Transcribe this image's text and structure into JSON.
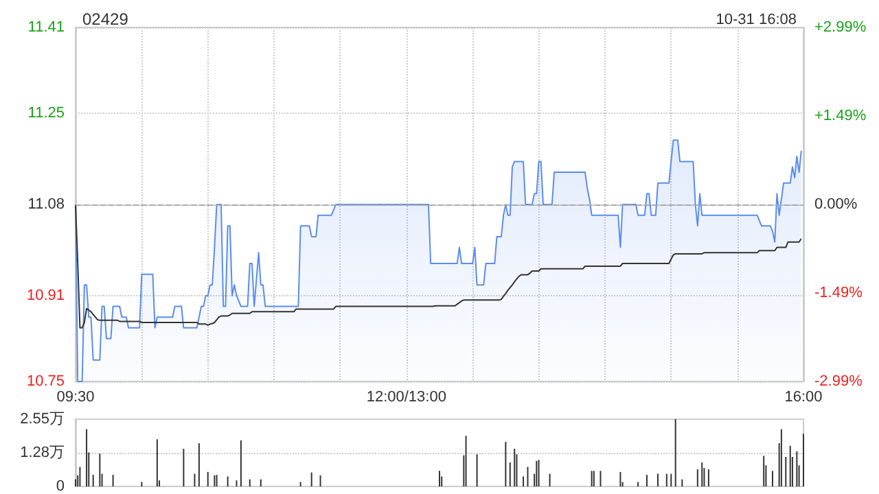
{
  "chart_data": [
    {
      "type": "line",
      "title": "02429",
      "subtitle": "10-31 16:08",
      "categories": [
        "09:30",
        null,
        null,
        null,
        null,
        null,
        null,
        null,
        null,
        null,
        null,
        null,
        null,
        null,
        null,
        null,
        null,
        null,
        null,
        null,
        null,
        null,
        null,
        null,
        null,
        null,
        null,
        null,
        null,
        null,
        null,
        null,
        null,
        null,
        null,
        null,
        null,
        null,
        null,
        null,
        null,
        null,
        null,
        null,
        null,
        null,
        null,
        null,
        null,
        null,
        null,
        null,
        null,
        null,
        null,
        null,
        null,
        null,
        null,
        null,
        null,
        null,
        null,
        null,
        null,
        null,
        null,
        null,
        null,
        null,
        null,
        null,
        null,
        null,
        null,
        null,
        null,
        null,
        null,
        null,
        null,
        null,
        null,
        null,
        null,
        null,
        null,
        null,
        null,
        null,
        null,
        null,
        null,
        null,
        null,
        null,
        null,
        null,
        null,
        null,
        null,
        null,
        null,
        null,
        null,
        null,
        null,
        null,
        null,
        null,
        null,
        null,
        null,
        null,
        null,
        null,
        null,
        null,
        null,
        null,
        null,
        null,
        null,
        null,
        null,
        null,
        null,
        null,
        null,
        null,
        null,
        null,
        null,
        null,
        null,
        null,
        null,
        null,
        null,
        null,
        null,
        null,
        null,
        null,
        null,
        null,
        null,
        null,
        null,
        null,
        "12:00/13:00",
        null,
        null,
        null,
        null,
        null,
        null,
        null,
        null,
        null,
        null,
        null,
        null,
        null,
        null,
        null,
        null,
        null,
        null,
        null,
        null,
        null,
        null,
        null,
        null,
        null,
        null,
        null,
        null,
        null,
        null,
        null,
        null,
        null,
        null,
        null,
        null,
        null,
        null,
        null,
        null,
        null,
        null,
        null,
        null,
        null,
        null,
        null,
        null,
        null,
        null,
        null,
        null,
        null,
        null,
        null,
        null,
        null,
        null,
        null,
        null,
        null,
        null,
        null,
        null,
        null,
        null,
        null,
        null,
        null,
        null,
        null,
        null,
        null,
        null,
        null,
        null,
        null,
        null,
        null,
        null,
        null,
        null,
        null,
        null,
        null,
        null,
        null,
        null,
        null,
        null,
        null,
        null,
        null,
        null,
        null,
        null,
        null,
        null,
        null,
        null,
        null,
        null,
        null,
        null,
        null,
        null,
        null,
        null,
        null,
        null,
        null,
        null,
        null,
        null,
        null,
        null,
        null,
        null,
        null,
        null,
        null,
        null,
        null,
        null,
        null,
        null,
        null,
        null,
        null,
        null,
        null,
        null,
        null,
        null,
        null,
        null,
        null,
        null,
        null,
        null,
        null,
        null,
        null,
        null,
        null,
        null,
        null,
        null,
        null,
        null,
        null,
        null,
        null,
        null,
        null,
        null,
        null,
        null,
        null,
        null,
        null,
        null,
        null,
        null,
        null,
        null,
        null,
        null,
        null,
        null,
        null,
        null,
        null,
        null,
        null,
        null,
        null,
        null,
        null,
        "16:00"
      ],
      "series": [
        {
          "type": "area",
          "color": "#5b8def",
          "values": [
            11.08,
            10.75,
            10.75,
            10.75,
            10.93,
            10.93,
            10.87,
            10.87,
            10.79,
            10.79,
            10.79,
            10.79,
            10.89,
            10.89,
            10.83,
            10.83,
            10.83,
            10.89,
            10.89,
            10.89,
            10.89,
            10.87,
            10.87,
            10.87,
            10.85,
            10.85,
            10.85,
            10.85,
            10.85,
            10.85,
            10.95,
            10.95,
            10.95,
            10.95,
            10.95,
            10.95,
            10.85,
            10.87,
            10.87,
            10.87,
            10.87,
            10.87,
            10.87,
            10.87,
            10.87,
            10.89,
            10.89,
            10.89,
            10.89,
            10.85,
            10.85,
            10.85,
            10.85,
            10.85,
            10.85,
            10.85,
            10.87,
            10.89,
            10.89,
            10.91,
            10.91,
            10.93,
            10.93,
            11.0,
            11.08,
            11.08,
            11.08,
            10.89,
            10.89,
            11.04,
            11.04,
            10.91,
            10.93,
            10.91,
            10.9,
            10.89,
            10.89,
            10.89,
            10.89,
            10.97,
            10.97,
            10.89,
            10.94,
            10.99,
            10.93,
            10.93,
            10.89,
            10.89,
            10.89,
            10.89,
            10.89,
            10.89,
            10.89,
            10.89,
            10.89,
            10.89,
            10.89,
            10.89,
            10.89,
            10.89,
            10.89,
            10.89,
            11.04,
            11.04,
            11.04,
            11.04,
            11.04,
            11.02,
            11.02,
            11.02,
            11.06,
            11.06,
            11.06,
            11.06,
            11.06,
            11.06,
            11.06,
            11.07,
            11.08,
            11.08,
            11.08,
            11.08,
            11.08,
            11.08,
            11.08,
            11.08,
            11.08,
            11.08,
            11.08,
            11.08,
            11.08,
            11.08,
            11.08,
            11.08,
            11.08,
            11.08,
            11.08,
            11.08,
            11.08,
            11.08,
            11.08,
            11.08,
            11.08,
            11.08,
            11.08,
            11.08,
            11.08,
            11.08,
            11.08,
            11.08,
            11.08,
            11.08,
            11.08,
            11.08,
            11.08,
            11.08,
            11.08,
            11.08,
            11.08,
            11.08,
            11.08,
            10.97,
            10.97,
            10.97,
            10.97,
            10.97,
            10.97,
            10.97,
            10.97,
            10.97,
            10.97,
            10.97,
            10.97,
            10.97,
            11.0,
            10.97,
            10.97,
            10.97,
            10.97,
            10.97,
            10.97,
            11.0,
            10.93,
            10.93,
            10.93,
            10.93,
            10.97,
            10.97,
            10.97,
            10.97,
            10.97,
            11.02,
            11.02,
            11.02,
            11.06,
            11.08,
            11.06,
            11.06,
            11.15,
            11.16,
            11.16,
            11.16,
            11.16,
            11.16,
            11.08,
            11.08,
            11.08,
            11.08,
            11.1,
            11.1,
            11.16,
            11.16,
            11.08,
            11.08,
            11.08,
            11.08,
            11.08,
            11.14,
            11.14,
            11.14,
            11.14,
            11.14,
            11.14,
            11.14,
            11.14,
            11.14,
            11.14,
            11.14,
            11.14,
            11.14,
            11.14,
            11.14,
            11.11,
            11.09,
            11.06,
            11.06,
            11.06,
            11.06,
            11.06,
            11.06,
            11.06,
            11.06,
            11.06,
            11.06,
            11.06,
            11.06,
            11.06,
            11.0,
            11.08,
            11.08,
            11.08,
            11.08,
            11.08,
            11.08,
            11.08,
            11.06,
            11.06,
            11.06,
            11.06,
            11.1,
            11.1,
            11.06,
            11.06,
            11.06,
            11.12,
            11.12,
            11.12,
            11.12,
            11.12,
            11.12,
            11.16,
            11.2,
            11.2,
            11.2,
            11.16,
            11.16,
            11.16,
            11.16,
            11.16,
            11.16,
            11.16,
            11.08,
            11.04,
            11.1,
            11.06,
            11.06,
            11.06,
            11.06,
            11.06,
            11.06,
            11.06,
            11.06,
            11.06,
            11.06,
            11.06,
            11.06,
            11.06,
            11.06,
            11.06,
            11.06,
            11.06,
            11.06,
            11.06,
            11.06,
            11.06,
            11.06,
            11.06,
            11.06,
            11.06,
            11.06,
            11.05,
            11.04,
            11.04,
            11.04,
            11.04,
            11.04,
            11.03,
            11.01,
            11.1,
            11.06,
            11.09,
            11.12,
            11.12,
            11.12,
            11.12,
            11.15,
            11.13,
            11.17,
            11.14,
            11.18,
            null
          ]
        },
        {
          "color": "#333333",
          "values": [
            11.08,
            10.97,
            10.85,
            10.85,
            10.86,
            10.886,
            10.883,
            10.88,
            10.875,
            10.87,
            10.865,
            10.864,
            10.864,
            10.864,
            10.864,
            10.864,
            10.864,
            10.864,
            10.864,
            10.864,
            10.862,
            10.862,
            10.862,
            10.862,
            10.862,
            10.862,
            10.862,
            10.862,
            10.862,
            10.862,
            10.86,
            10.86,
            10.86,
            10.86,
            10.86,
            10.86,
            10.86,
            10.86,
            10.86,
            10.86,
            10.86,
            10.86,
            10.86,
            10.86,
            10.86,
            10.86,
            10.86,
            10.86,
            10.86,
            10.86,
            10.86,
            10.86,
            10.86,
            10.86,
            10.86,
            10.86,
            10.857,
            10.857,
            10.857,
            10.857,
            10.855,
            10.857,
            10.858,
            10.86,
            10.865,
            10.87,
            10.872,
            10.872,
            10.872,
            10.872,
            10.874,
            10.877,
            10.877,
            10.877,
            10.877,
            10.877,
            10.877,
            10.877,
            10.877,
            10.877,
            10.88,
            10.88,
            10.88,
            10.88,
            10.88,
            10.88,
            10.88,
            10.88,
            10.88,
            10.88,
            10.88,
            10.88,
            10.88,
            10.88,
            10.88,
            10.88,
            10.88,
            10.88,
            10.88,
            10.88,
            10.885,
            10.885,
            10.885,
            10.885,
            10.885,
            10.885,
            10.885,
            10.885,
            10.885,
            10.885,
            10.885,
            10.885,
            10.885,
            10.885,
            10.885,
            10.885,
            10.885,
            10.885,
            10.89,
            10.89,
            10.89,
            10.89,
            10.89,
            10.89,
            10.89,
            10.89,
            10.89,
            10.89,
            10.89,
            10.89,
            10.89,
            10.89,
            10.89,
            10.89,
            10.89,
            10.89,
            10.89,
            10.89,
            10.89,
            10.89,
            10.89,
            10.89,
            10.89,
            10.89,
            10.89,
            10.89,
            10.89,
            10.89,
            10.89,
            10.89,
            10.89,
            10.89,
            10.89,
            10.89,
            10.89,
            10.89,
            10.89,
            10.89,
            10.89,
            10.89,
            10.89,
            10.89,
            10.89,
            10.891,
            10.891,
            10.891,
            10.891,
            10.891,
            10.891,
            10.891,
            10.891,
            10.891,
            10.891,
            10.894,
            10.897,
            10.9,
            10.902,
            10.902,
            10.902,
            10.902,
            10.902,
            10.902,
            10.902,
            10.902,
            10.902,
            10.902,
            10.902,
            10.902,
            10.902,
            10.902,
            10.902,
            10.902,
            10.902,
            10.903,
            10.909,
            10.914,
            10.92,
            10.925,
            10.93,
            10.936,
            10.941,
            10.946,
            10.949,
            10.949,
            10.949,
            10.949,
            10.952,
            10.956,
            10.956,
            10.956,
            10.956,
            10.96,
            10.96,
            10.96,
            10.96,
            10.96,
            10.96,
            10.96,
            10.96,
            10.96,
            10.96,
            10.96,
            10.96,
            10.96,
            10.96,
            10.96,
            10.96,
            10.96,
            10.96,
            10.96,
            10.96,
            10.965,
            10.965,
            10.965,
            10.965,
            10.965,
            10.965,
            10.965,
            10.965,
            10.965,
            10.965,
            10.965,
            10.965,
            10.965,
            10.965,
            10.965,
            10.965,
            10.965,
            10.97,
            10.97,
            10.97,
            10.97,
            10.97,
            10.97,
            10.97,
            10.97,
            10.97,
            10.97,
            10.97,
            10.97,
            10.97,
            10.97,
            10.97,
            10.97,
            10.97,
            10.97,
            10.97,
            10.97,
            10.97,
            10.97,
            10.978,
            10.986,
            10.988,
            10.988,
            10.988,
            10.988,
            10.988,
            10.988,
            10.988,
            10.988,
            10.988,
            10.988,
            10.988,
            10.988,
            10.988,
            10.99,
            10.99,
            10.99,
            10.99,
            10.99,
            10.99,
            10.99,
            10.99,
            10.99,
            10.99,
            10.99,
            10.99,
            10.99,
            10.99,
            10.99,
            10.99,
            10.99,
            10.99,
            10.99,
            10.99,
            10.99,
            10.99,
            10.99,
            10.99,
            10.99,
            10.994,
            10.994,
            10.994,
            10.994,
            10.994,
            10.994,
            10.994,
            10.994,
            11.0,
            11.0,
            11.0,
            11.0,
            11.0,
            11.01,
            11.01,
            11.01,
            11.01,
            11.01,
            11.01,
            11.016,
            null
          ]
        }
      ],
      "ylim": [
        10.75,
        11.41
      ],
      "yticks": [
        10.75,
        10.91,
        11.08,
        11.25,
        11.41
      ],
      "y2lim": [
        -2.99,
        2.99
      ],
      "y2ticks": [
        {
          "value": -2.99,
          "label": "-2.99%"
        },
        {
          "value": -1.49,
          "label": "-1.49%"
        },
        {
          "value": 0,
          "label": "0.00%"
        },
        {
          "value": 1.49,
          "label": "+1.49%"
        },
        {
          "value": 2.99,
          "label": "+2.99%"
        }
      ],
      "ref_lines": [
        {
          "axis": "y",
          "value": 11.08,
          "color": "#aaaaaa",
          "line_style": "dashed"
        }
      ],
      "grid": true,
      "marker": "none",
      "line_style": "solid"
    },
    {
      "type": "bar",
      "color": "#333333",
      "categories": [
        null,
        null,
        null,
        null,
        null,
        null,
        null,
        null,
        null,
        null,
        null,
        null,
        null,
        null,
        null,
        null,
        null,
        null,
        null,
        null,
        null,
        null,
        null,
        null,
        null,
        null,
        null,
        null,
        null,
        null,
        null,
        null,
        null,
        null,
        null,
        null,
        null,
        null,
        null,
        null,
        null,
        null,
        null,
        null,
        null,
        null,
        null,
        null,
        null,
        null,
        null,
        null,
        null,
        null,
        null,
        null,
        null,
        null,
        null,
        null,
        null,
        null,
        null,
        null,
        null,
        null,
        null,
        null,
        null,
        null,
        null,
        null,
        null,
        null,
        null,
        null,
        null,
        null,
        null,
        null,
        null,
        null,
        null,
        null,
        null,
        null,
        null,
        null,
        null,
        null,
        null,
        null,
        null,
        null,
        null,
        null,
        null,
        null,
        null,
        null,
        null,
        null,
        null,
        null,
        null,
        null,
        null,
        null,
        null,
        null,
        null,
        null,
        null,
        null,
        null,
        null,
        null,
        null,
        null,
        null,
        null,
        null,
        null,
        null,
        null,
        null,
        null,
        null,
        null,
        null,
        null,
        null,
        null,
        null,
        null,
        null,
        null,
        null,
        null,
        null,
        null,
        null,
        null,
        null,
        null,
        null,
        null,
        null,
        null,
        null,
        null,
        null,
        null,
        null,
        null,
        null,
        null,
        null,
        null,
        null,
        null,
        null,
        null,
        null,
        null,
        null,
        null,
        null,
        null,
        null,
        null,
        null,
        null,
        null,
        null,
        null,
        null,
        null,
        null,
        null,
        null,
        null,
        null,
        null,
        null,
        null,
        null,
        null,
        null,
        null,
        null,
        null,
        null,
        null,
        null,
        null,
        null,
        null,
        null,
        null,
        null,
        null,
        null,
        null,
        null,
        null,
        null,
        null,
        null,
        null,
        null,
        null,
        null,
        null,
        null,
        null,
        null,
        null,
        null,
        null,
        null,
        null,
        null,
        null,
        null,
        null,
        null,
        null,
        null,
        null,
        null,
        null,
        null,
        null,
        null,
        null,
        null,
        null,
        null,
        null,
        null,
        null,
        null,
        null,
        null,
        null,
        null,
        null,
        null,
        null,
        null,
        null,
        null,
        null,
        null,
        null,
        null,
        null,
        null,
        null,
        null,
        null,
        null,
        null,
        null,
        null,
        null,
        null,
        null,
        null,
        null,
        null,
        null,
        null,
        null,
        null,
        null,
        null,
        null,
        null,
        null,
        null,
        null,
        null,
        null,
        null,
        null,
        null,
        null,
        null,
        null,
        null,
        null,
        null,
        null,
        null,
        null,
        null,
        null,
        null,
        null,
        null,
        null,
        null,
        null,
        null,
        null,
        null,
        null,
        null,
        null,
        null,
        null,
        null,
        null,
        null,
        null,
        null,
        null,
        null,
        null,
        null,
        null,
        null,
        null,
        null,
        null,
        null,
        null,
        null,
        null
      ],
      "values": [
        0.27,
        0.42,
        0.74,
        null,
        null,
        2.17,
        1.29,
        null,
        0.44,
        null,
        null,
        1.24,
        0.48,
        null,
        null,
        null,
        null,
        0.44,
        null,
        null,
        null,
        null,
        null,
        null,
        null,
        null,
        null,
        null,
        null,
        null,
        0.17,
        null,
        null,
        null,
        null,
        null,
        null,
        1.79,
        0.23,
        null,
        null,
        null,
        null,
        null,
        null,
        null,
        null,
        null,
        null,
        1.43,
        null,
        null,
        null,
        null,
        0.48,
        null,
        1.64,
        null,
        null,
        null,
        0.55,
        null,
        null,
        0.42,
        0.44,
        null,
        null,
        null,
        null,
        0.38,
        null,
        null,
        null,
        0.23,
        null,
        1.75,
        null,
        null,
        null,
        0.27,
        null,
        null,
        null,
        null,
        0.27,
        null,
        null,
        null,
        null,
        null,
        null,
        null,
        null,
        null,
        null,
        null,
        null,
        null,
        null,
        null,
        null,
        null,
        0.17,
        null,
        null,
        null,
        null,
        0.53,
        null,
        null,
        null,
        0.42,
        null,
        null,
        null,
        null,
        null,
        null,
        null,
        null,
        null,
        null,
        null,
        null,
        null,
        null,
        null,
        null,
        null,
        null,
        null,
        null,
        null,
        null,
        null,
        null,
        null,
        null,
        null,
        null,
        null,
        null,
        null,
        null,
        null,
        null,
        null,
        null,
        null,
        null,
        null,
        null,
        null,
        null,
        null,
        null,
        null,
        null,
        null,
        null,
        null,
        null,
        null,
        null,
        null,
        0.59,
        0.38,
        null,
        null,
        null,
        null,
        null,
        null,
        null,
        null,
        null,
        1.18,
        1.92,
        null,
        null,
        null,
        null,
        1.22,
        null,
        null,
        null,
        null,
        null,
        null,
        null,
        null,
        null,
        null,
        null,
        null,
        1.69,
        null,
        0.91,
        null,
        1.43,
        1.22,
        null,
        null,
        0.38,
        null,
        0.74,
        null,
        null,
        0.48,
        0.97,
        1.01,
        null,
        null,
        null,
        null,
        0.48,
        null,
        null,
        null,
        null,
        null,
        null,
        null,
        null,
        null,
        null,
        null,
        null,
        null,
        null,
        null,
        null,
        null,
        null,
        0.59,
        0.59,
        null,
        null,
        0.59,
        null,
        null,
        null,
        null,
        null,
        null,
        null,
        null,
        0.55,
        0.17,
        null,
        null,
        null,
        null,
        null,
        null,
        0.17,
        null,
        null,
        null,
        0.44,
        null,
        null,
        null,
        null,
        0.48,
        null,
        null,
        null,
        0.48,
        null,
        0.48,
        null,
        2.55,
        null,
        null,
        0.27,
        null,
        null,
        null,
        null,
        null,
        null,
        0.65,
        null,
        0.91,
        0.7,
        null,
        0.65,
        null,
        null,
        null,
        null,
        null,
        null,
        null,
        null,
        null,
        null,
        null,
        null,
        null,
        null,
        null,
        null,
        null,
        null,
        null,
        null,
        null,
        null,
        null,
        null,
        1.16,
        0.8,
        null,
        null,
        0.59,
        null,
        null,
        1.64,
        2.17,
        null,
        1.12,
        null,
        1.54,
        1.12,
        null,
        1.33,
        0.8,
        null,
        2.0
      ],
      "ylim": [
        0,
        2.55
      ],
      "yticks": [
        {
          "value": 0,
          "label": "0"
        },
        {
          "value": 1.28,
          "label": "1.28万"
        },
        {
          "value": 2.55,
          "label": "2.55万"
        }
      ],
      "tick_labels": "y",
      "grid": "y"
    }
  ]
}
